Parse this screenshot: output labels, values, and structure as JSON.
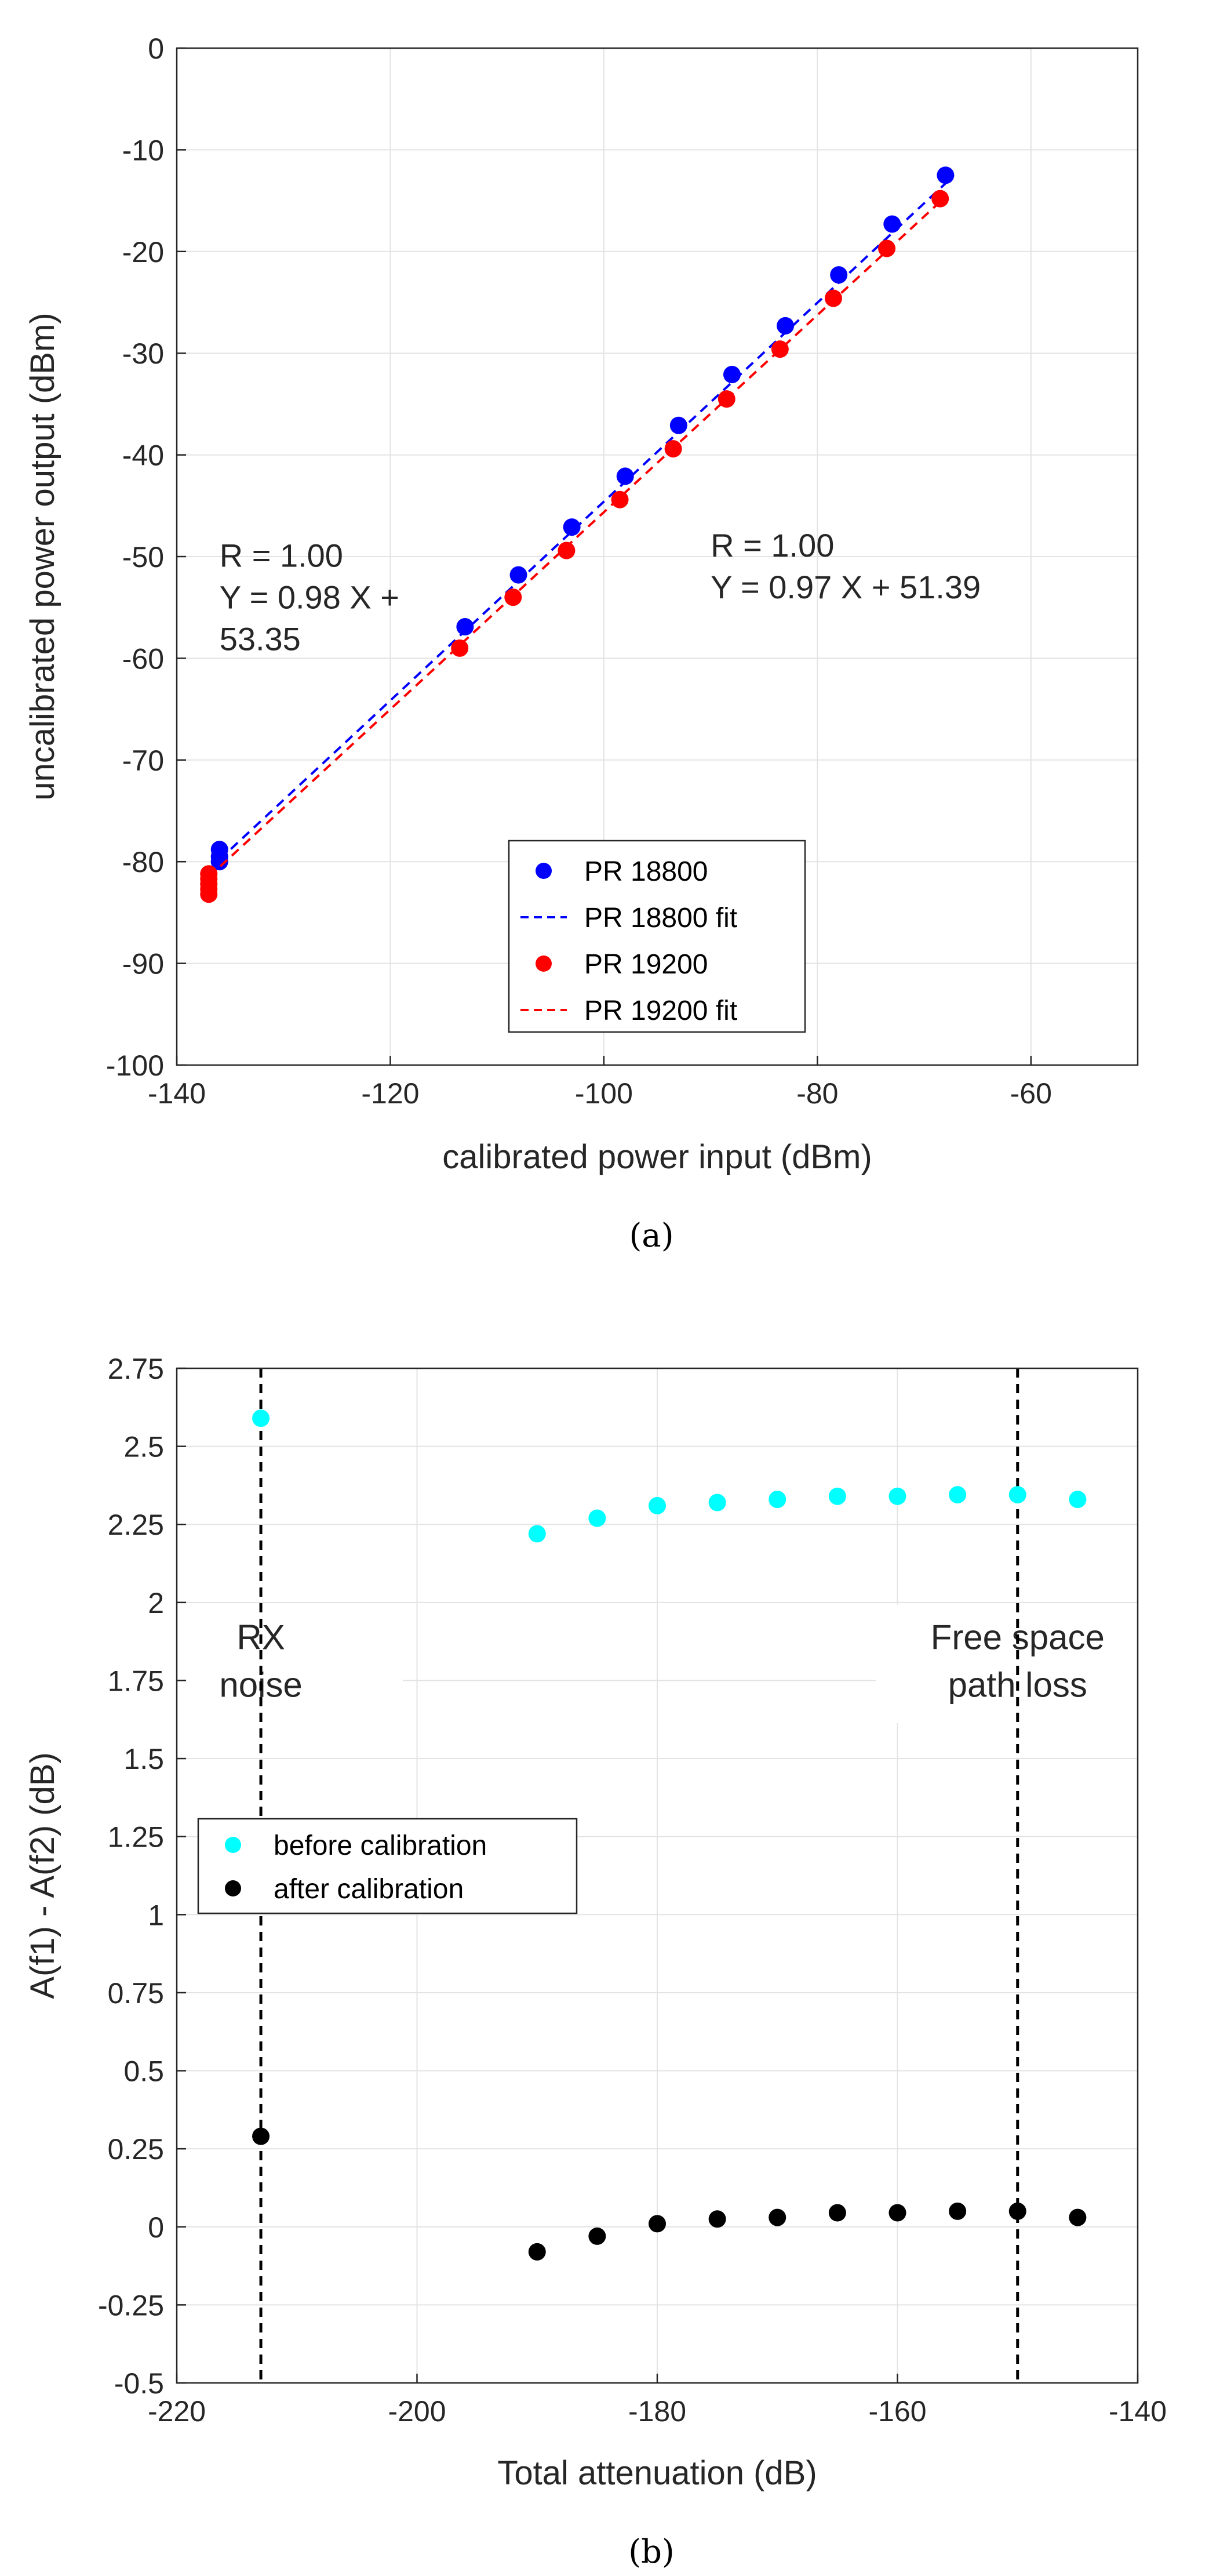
{
  "chart_data": [
    {
      "type": "scatter",
      "caption": "(a)",
      "xlabel": "calibrated power input (dBm)",
      "ylabel": "uncalibrated power output (dBm)",
      "xlim": [
        -140,
        -50
      ],
      "ylim": [
        -100,
        0
      ],
      "xticks": [
        -140,
        -120,
        -100,
        -80,
        -60
      ],
      "yticks": [
        0,
        -10,
        -20,
        -30,
        -40,
        -50,
        -60,
        -70,
        -80,
        -90,
        -100
      ],
      "grid": true,
      "legend_position": "bottom-center",
      "series": [
        {
          "name": "PR 18800",
          "kind": "scatter",
          "color": "#0000ff",
          "x": [
            -136,
            -136,
            -136,
            -113,
            -108,
            -103,
            -98,
            -93,
            -88,
            -83,
            -78,
            -73,
            -68
          ],
          "y": [
            -78.8,
            -79.5,
            -80,
            -56.9,
            -51.8,
            -47.1,
            -42.1,
            -37.1,
            -32.1,
            -27.3,
            -22.3,
            -17.3,
            -12.5
          ]
        },
        {
          "name": "PR 18800 fit",
          "kind": "fit",
          "color": "#0000ff",
          "x": [
            -136,
            -68
          ],
          "y": [
            -79.8,
            -13.3
          ]
        },
        {
          "name": "PR 19200",
          "kind": "scatter",
          "color": "#ff0000",
          "x": [
            -137,
            -137,
            -137,
            -137,
            -137,
            -113.5,
            -108.5,
            -103.5,
            -98.5,
            -93.5,
            -88.5,
            -83.5,
            -78.5,
            -73.5,
            -68.5
          ],
          "y": [
            -81.2,
            -81.7,
            -82.2,
            -82.7,
            -83.2,
            -59,
            -54,
            -49.4,
            -44.4,
            -39.4,
            -34.5,
            -29.6,
            -24.6,
            -19.7,
            -14.8
          ]
        },
        {
          "name": "PR 19200 fit",
          "kind": "fit",
          "color": "#ff0000",
          "x": [
            -137,
            -68.5
          ],
          "y": [
            -81.5,
            -15.1
          ]
        }
      ],
      "annotations": [
        {
          "lines": [
            "R = 1.00",
            "Y = 0.98 X +",
            "53.35"
          ],
          "x": -136,
          "y": -51
        },
        {
          "lines": [
            "R = 1.00",
            "Y = 0.97 X + 51.39"
          ],
          "x": -90,
          "y": -50
        }
      ]
    },
    {
      "type": "scatter",
      "caption": "(b)",
      "xlabel": "Total attenuation (dB)",
      "ylabel": "A(f1) - A(f2) (dB)",
      "xlim": [
        -220,
        -140
      ],
      "ylim": [
        -0.5,
        2.75
      ],
      "xticks": [
        -220,
        -200,
        -180,
        -160,
        -140
      ],
      "yticks": [
        2.75,
        2.5,
        2.25,
        2,
        1.75,
        1.5,
        1.25,
        1,
        0.75,
        0.5,
        0.25,
        0,
        -0.25,
        -0.5
      ],
      "grid": true,
      "legend_position": "middle-left",
      "vlines": [
        -213,
        -150
      ],
      "series": [
        {
          "name": "before calibration",
          "kind": "scatter",
          "color": "#00ffff",
          "x": [
            -213,
            -190,
            -185,
            -180,
            -175,
            -170,
            -165,
            -160,
            -155,
            -150,
            -145
          ],
          "y": [
            2.59,
            2.22,
            2.27,
            2.31,
            2.32,
            2.33,
            2.34,
            2.34,
            2.345,
            2.345,
            2.33
          ]
        },
        {
          "name": "after calibration",
          "kind": "scatter",
          "color": "#000000",
          "x": [
            -213,
            -190,
            -185,
            -180,
            -175,
            -170,
            -165,
            -160,
            -155,
            -150,
            -145
          ],
          "y": [
            0.29,
            -0.08,
            -0.03,
            0.01,
            0.025,
            0.03,
            0.045,
            0.045,
            0.05,
            0.05,
            0.03
          ]
        }
      ],
      "annotations": [
        {
          "lines": [
            "RX",
            "noise"
          ],
          "x": -213,
          "y": 1.85
        },
        {
          "lines": [
            "Free space",
            "path loss"
          ],
          "x": -150,
          "y": 1.85
        }
      ]
    }
  ]
}
